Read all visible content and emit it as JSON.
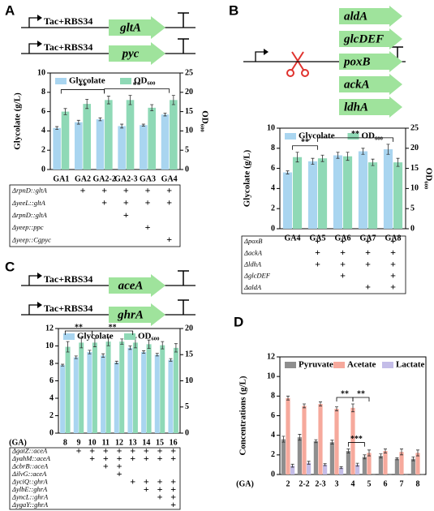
{
  "chart_data": [
    {
      "panel": "A",
      "type": "bar",
      "constructs": [
        {
          "promoter": "Tac+RBS34",
          "gene": "gltA"
        },
        {
          "promoter": "Tac+RBS34",
          "gene": "pyc"
        }
      ],
      "categories": [
        "GA1",
        "GA2",
        "GA2-2",
        "GA2-3",
        "GA3",
        "GA4"
      ],
      "ylabel": "Glycolate (g/L)",
      "y2label": "OD₆₀₀",
      "ylim": [
        0,
        10
      ],
      "yticks": [
        0,
        2,
        4,
        6,
        8,
        10
      ],
      "y2lim": [
        0,
        25
      ],
      "y2ticks": [
        0,
        5,
        10,
        15,
        20,
        25
      ],
      "series": [
        {
          "name": "Glycolate",
          "color": "#a9d5f0",
          "values": [
            4.3,
            4.9,
            5.2,
            4.5,
            4.6,
            5.7
          ],
          "errors": [
            0.15,
            0.2,
            0.15,
            0.2,
            0.1,
            0.15
          ]
        },
        {
          "name": "OD₆₀₀",
          "color": "#8fd9b6",
          "axis": "y2",
          "values": [
            15,
            17,
            18,
            18,
            16,
            18
          ],
          "errors": [
            0.8,
            1.2,
            1.0,
            1.2,
            0.8,
            1.2
          ]
        }
      ],
      "significance": [
        {
          "from": "GA1",
          "to": "GA2-2",
          "label": "**"
        },
        {
          "from": "GA2-2",
          "to": "GA4",
          "label": "**"
        }
      ],
      "table": {
        "rows": [
          {
            "label": "ΔrpnD::gltA",
            "cells": [
              null,
              "+",
              "+",
              "+",
              "+",
              "+"
            ]
          },
          {
            "label": "ΔyeeL::gltA",
            "cells": [
              null,
              null,
              "+",
              "+",
              "+",
              "+"
            ]
          },
          {
            "label": "ΔrpnD::gltA",
            "cells": [
              null,
              null,
              null,
              "+",
              null,
              null
            ]
          },
          {
            "label": "Δyeep::ppc",
            "cells": [
              null,
              null,
              null,
              null,
              "+",
              null
            ]
          },
          {
            "label": "Δyeep::Cgpyc",
            "cells": [
              null,
              null,
              null,
              null,
              null,
              "+"
            ]
          }
        ]
      }
    },
    {
      "panel": "B",
      "type": "bar",
      "genes": [
        "aldA",
        "glcDEF",
        "poxB",
        "ackA",
        "ldhA"
      ],
      "categories": [
        "GA4",
        "GA5",
        "GA6",
        "GA7",
        "GA8"
      ],
      "ylabel": "Glycolate (g/L)",
      "y2label": "OD₆₀₀",
      "ylim": [
        0,
        10
      ],
      "yticks": [
        0,
        2,
        4,
        6,
        8,
        10
      ],
      "y2lim": [
        0,
        25
      ],
      "y2ticks": [
        0,
        5,
        10,
        15,
        20,
        25
      ],
      "series": [
        {
          "name": "Glycolate",
          "color": "#a9d5f0",
          "values": [
            5.6,
            6.7,
            7.3,
            7.7,
            7.9
          ],
          "errors": [
            0.15,
            0.3,
            0.3,
            0.3,
            0.5
          ]
        },
        {
          "name": "OD₆₀₀",
          "color": "#8fd9b6",
          "axis": "y2",
          "values": [
            17.8,
            17.5,
            18,
            16.5,
            16.5
          ],
          "errors": [
            1.2,
            0.8,
            1.0,
            0.8,
            1.0
          ]
        }
      ],
      "significance": [
        {
          "from": "GA4",
          "to": "GA5",
          "label": "**"
        },
        {
          "from": "GA5",
          "to": "GA8",
          "label": "**"
        }
      ],
      "table": {
        "rows": [
          {
            "label": "ΔpoxB",
            "cells": [
              null,
              "+",
              "+",
              "+",
              "+"
            ]
          },
          {
            "label": "ΔackA",
            "cells": [
              null,
              "+",
              "+",
              "+",
              "+"
            ]
          },
          {
            "label": "ΔldhA",
            "cells": [
              null,
              "+",
              "+",
              "+",
              "+"
            ]
          },
          {
            "label": "ΔglcDEF",
            "cells": [
              null,
              null,
              "+",
              null,
              "+"
            ]
          },
          {
            "label": "ΔaldA",
            "cells": [
              null,
              null,
              null,
              "+",
              "+"
            ]
          }
        ]
      }
    },
    {
      "panel": "C",
      "type": "bar",
      "constructs": [
        {
          "promoter": "Tac+RBS34",
          "gene": "aceA"
        },
        {
          "promoter": "Tac+RBS34",
          "gene": "ghrA"
        }
      ],
      "categories": [
        "8",
        "9",
        "10",
        "11",
        "12",
        "13",
        "14",
        "15",
        "16"
      ],
      "xlabel": "(GA)",
      "ylim": [
        0,
        12
      ],
      "yticks": [
        0,
        2,
        4,
        6,
        8,
        10,
        12
      ],
      "y2lim": [
        0,
        20
      ],
      "y2ticks": [
        0,
        5,
        10,
        15,
        20
      ],
      "series": [
        {
          "name": "Glycolate",
          "color": "#a9d5f0",
          "values": [
            7.8,
            8.7,
            9.3,
            8.9,
            8.1,
            9.8,
            9.3,
            9.0,
            8.4
          ],
          "errors": [
            0.1,
            0.15,
            0.2,
            0.2,
            0.15,
            0.2,
            0.15,
            0.15,
            0.15
          ]
        },
        {
          "name": "OD₆₀₀",
          "color": "#8fd9b6",
          "axis": "y2",
          "values": [
            16.5,
            17.3,
            17.3,
            17.5,
            17.5,
            17.3,
            17,
            16.8,
            16.3
          ],
          "errors": [
            1,
            1,
            0.8,
            0.8,
            0.5,
            1,
            0.8,
            0.7,
            0.8
          ]
        }
      ],
      "significance": [
        {
          "from": "8",
          "to": "10",
          "label": "**"
        },
        {
          "from": "10",
          "to": "13",
          "label": "**"
        }
      ],
      "table": {
        "rows": [
          {
            "label": "ΔgatZ::aceA",
            "cells": [
              null,
              "+",
              "+",
              "+",
              "+",
              "+",
              "+",
              "+",
              "+"
            ]
          },
          {
            "label": "ΔyahM::aceA",
            "cells": [
              null,
              null,
              "+",
              "+",
              "+",
              "+",
              "+",
              "+",
              "+"
            ]
          },
          {
            "label": "ΔcbrB::aceA",
            "cells": [
              null,
              null,
              null,
              "+",
              "+",
              null,
              null,
              null,
              null
            ]
          },
          {
            "label": "ΔilvG::aceA",
            "cells": [
              null,
              null,
              null,
              null,
              "+",
              null,
              null,
              null,
              null
            ]
          },
          {
            "label": "ΔyciQ::ghrA",
            "cells": [
              null,
              null,
              null,
              null,
              null,
              "+",
              "+",
              "+",
              "+"
            ]
          },
          {
            "label": "ΔylbE::ghrA",
            "cells": [
              null,
              null,
              null,
              null,
              null,
              null,
              "+",
              "+",
              "+"
            ]
          },
          {
            "label": "ΔyncL::ghrA",
            "cells": [
              null,
              null,
              null,
              null,
              null,
              null,
              null,
              "+",
              "+"
            ]
          },
          {
            "label": "ΔygaY::ghrA",
            "cells": [
              null,
              null,
              null,
              null,
              null,
              null,
              null,
              null,
              "+"
            ]
          }
        ]
      }
    },
    {
      "panel": "D",
      "type": "bar",
      "categories": [
        "2",
        "2-2",
        "2-3",
        "3",
        "4",
        "5",
        "6",
        "7",
        "8"
      ],
      "xlabel": "(GA)",
      "ylabel": "Concentrations (g/L)",
      "ylim": [
        0,
        12
      ],
      "yticks": [
        0,
        2,
        4,
        6,
        8,
        10,
        12
      ],
      "series": [
        {
          "name": "Pyruvate",
          "color": "#8e8e8e",
          "values": [
            3.6,
            3.8,
            3.4,
            3.3,
            2.4,
            1.8,
            1.9,
            1.6,
            1.6
          ],
          "errors": [
            0.3,
            0.3,
            0.15,
            0.2,
            0.2,
            0.2,
            0.2,
            0.1,
            0.2
          ]
        },
        {
          "name": "Acetate",
          "color": "#f6a99c",
          "values": [
            7.8,
            7.0,
            7.2,
            6.7,
            6.8,
            2.2,
            2.4,
            2.3,
            2.2
          ],
          "errors": [
            0.2,
            0.2,
            0.2,
            0.2,
            0.4,
            0.3,
            0.2,
            0.3,
            0.3
          ]
        },
        {
          "name": "Lactate",
          "color": "#c4bde8",
          "values": [
            0.9,
            1.2,
            1.0,
            0.7,
            1.0,
            0,
            0,
            0,
            0
          ],
          "errors": [
            0.15,
            0.15,
            0.1,
            0.1,
            0.15,
            0,
            0,
            0,
            0
          ]
        }
      ],
      "significance": [
        {
          "from": "3",
          "to": "4",
          "label": "**",
          "series": "Acetate"
        },
        {
          "from": "4",
          "to": "5",
          "label": "**",
          "series": "Acetate"
        },
        {
          "from": "4",
          "to": "5",
          "label": "***",
          "series": "Pyruvate"
        }
      ]
    }
  ]
}
